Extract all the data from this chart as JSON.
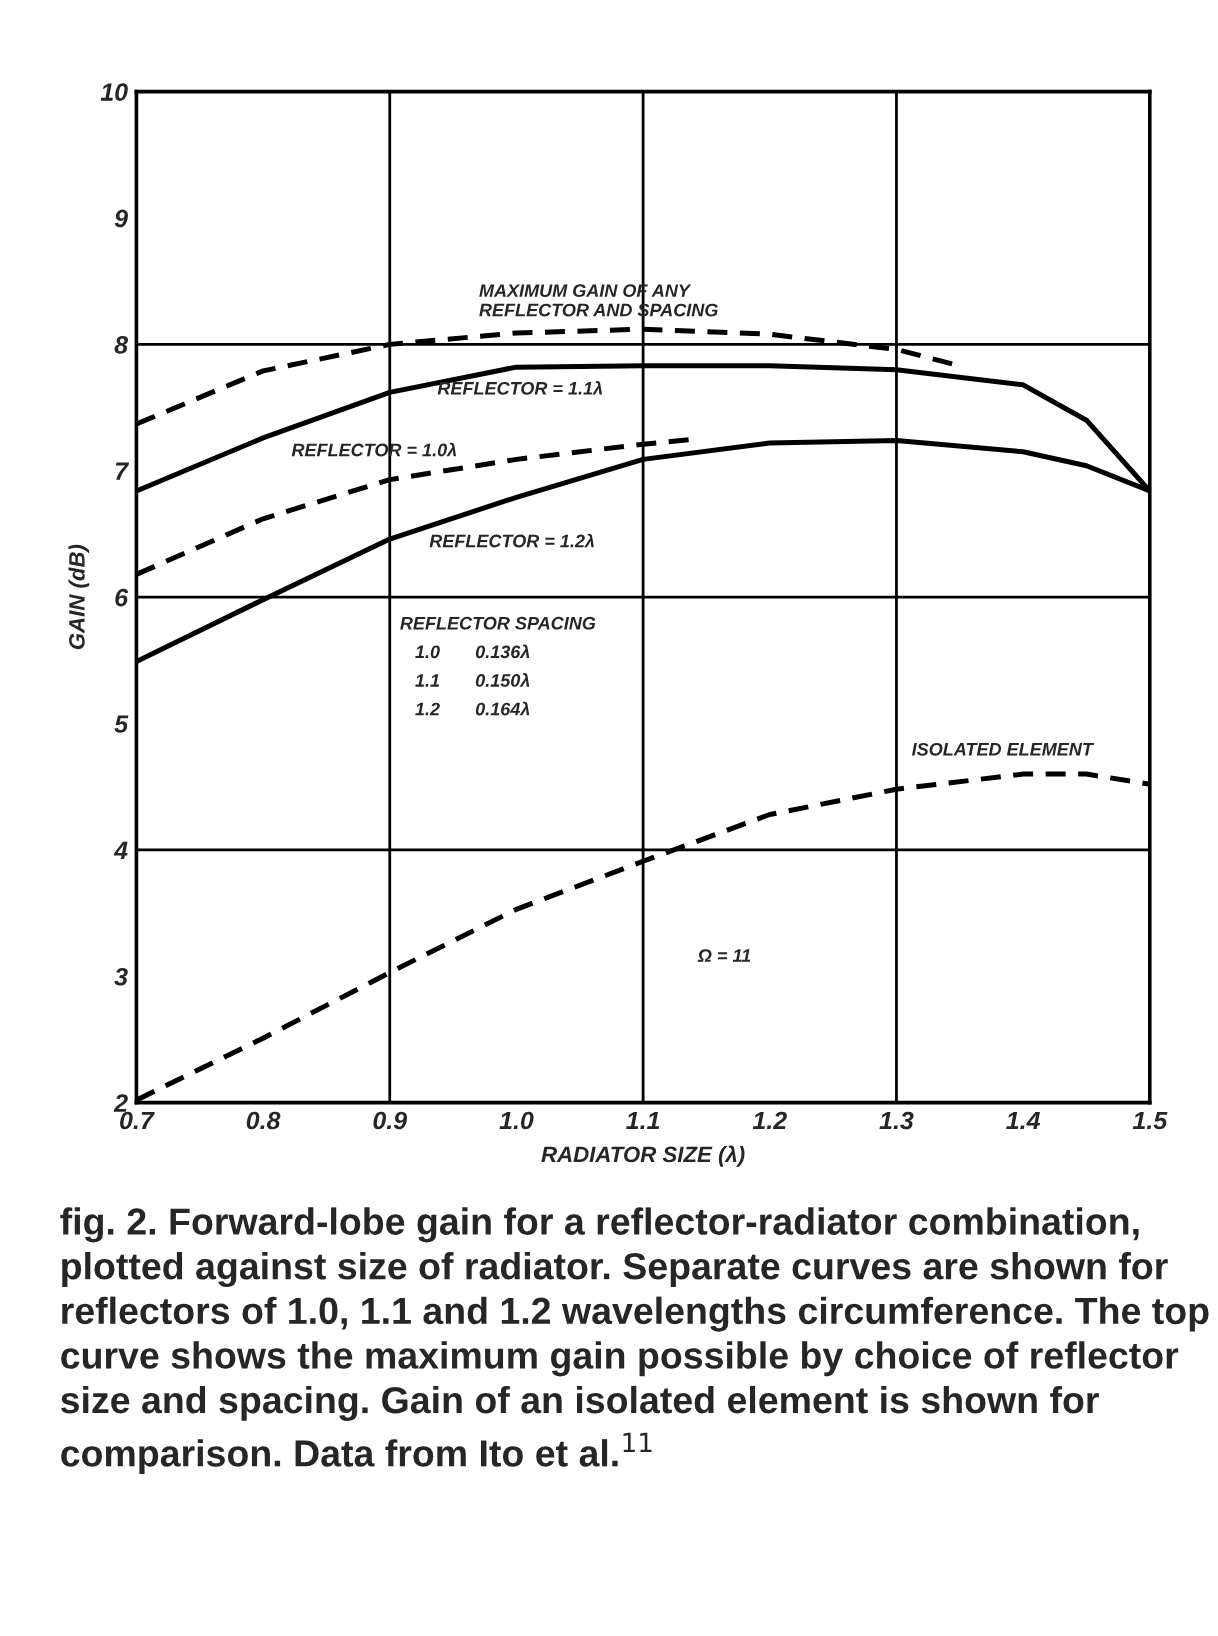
{
  "chart_data": {
    "type": "line",
    "xlabel": "RADIATOR SIZE (λ)",
    "ylabel": "GAIN (dB)",
    "x": [
      0.7,
      0.8,
      0.9,
      1.0,
      1.1,
      1.2,
      1.3,
      1.4,
      1.45,
      1.5
    ],
    "series": [
      {
        "color": "#000000",
        "line_style": "dashed",
        "x": [
          0.7,
          0.8,
          0.9,
          1.0,
          1.1,
          1.2,
          1.3,
          1.35
        ],
        "values": [
          7.37,
          7.79,
          8.0,
          8.09,
          8.12,
          8.08,
          7.96,
          7.83
        ]
      },
      {
        "color": "#000000",
        "line_style": "solid",
        "values": [
          6.84,
          7.26,
          7.62,
          7.82,
          7.83,
          7.83,
          7.8,
          7.68,
          7.4,
          6.84
        ]
      },
      {
        "color": "#000000",
        "line_style": "dashed",
        "x": [
          0.7,
          0.8,
          0.9,
          1.0,
          1.1,
          1.14
        ],
        "values": [
          6.18,
          6.62,
          6.93,
          7.09,
          7.21,
          7.25
        ]
      },
      {
        "color": "#000000",
        "line_style": "solid",
        "values": [
          5.49,
          5.98,
          6.46,
          6.79,
          7.09,
          7.22,
          7.24,
          7.15,
          7.04,
          6.84
        ]
      },
      {
        "color": "#000000",
        "line_style": "dashed",
        "values": [
          2.02,
          2.51,
          3.03,
          3.53,
          3.91,
          4.28,
          4.48,
          4.6,
          4.6,
          4.52
        ]
      }
    ],
    "xlim": [
      0.7,
      1.5
    ],
    "ylim": [
      2,
      10
    ],
    "xticks": [
      {
        "value": 0.7,
        "label": "0.7"
      },
      {
        "value": 0.8,
        "label": "0.8"
      },
      {
        "value": 0.9,
        "label": "0.9"
      },
      {
        "value": 1.0,
        "label": "1.0"
      },
      {
        "value": 1.1,
        "label": "1.1"
      },
      {
        "value": 1.2,
        "label": "1.2"
      },
      {
        "value": 1.3,
        "label": "1.3"
      },
      {
        "value": 1.4,
        "label": "1.4"
      },
      {
        "value": 1.5,
        "label": "1.5"
      }
    ],
    "yticks": [
      2,
      3,
      4,
      5,
      6,
      7,
      8,
      9,
      10
    ],
    "grid": true,
    "legend": false,
    "marker": "none",
    "annotations": [
      "MAXIMUM GAIN OF ANY\nREFLECTOR AND SPACING",
      "REFLECTOR = 1.1λ",
      "REFLECTOR = 1.0λ",
      "REFLECTOR = 1.2λ",
      "ISOLATED ELEMENT",
      "REFLECTOR SPACING\n   1.0       0.136λ\n   1.1       0.150λ\n   1.2       0.164λ",
      "Ω = 11",
      "fig. 2. Forward-lobe gain for a reflector-radiator combination, plotted against size of radiator. Separate curves are shown for reflectors of 1.0, 1.1 and 1.2 wavelengths circumference. The top curve shows the maximum gain possible by choice of reflector size and spacing. Gain of an isolated element is shown for comparison. Data from Ito et al.$^{11}$"
    ]
  }
}
